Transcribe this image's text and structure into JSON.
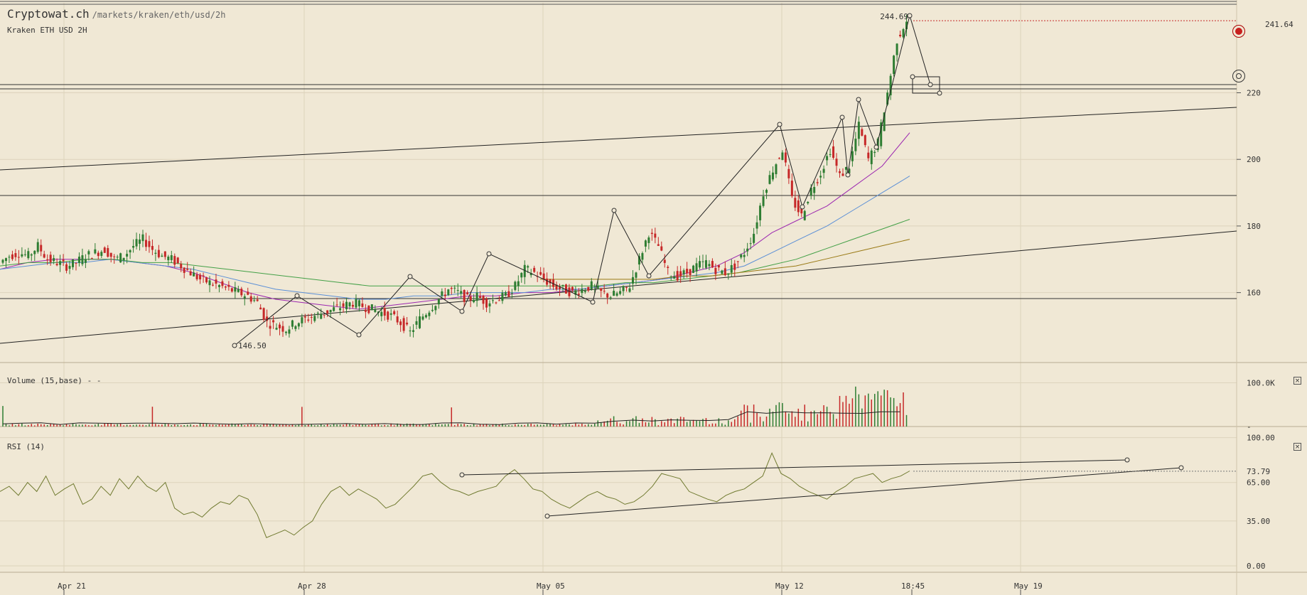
{
  "header": {
    "site": "Cryptowat.ch",
    "path": "/markets/kraken/eth/usd/2h",
    "market": "Kraken ETH USD 2H"
  },
  "panels": {
    "volume_label": "Volume (15,base) - -",
    "rsi_label": "RSI (14)",
    "close_glyph": "×"
  },
  "icons": [
    "alert-icon",
    "target-icon",
    "close-icon"
  ],
  "colors": {
    "background": "#f0e8d5",
    "up_candle": "#2e7d32",
    "down_candle": "#c62828",
    "ma_purple": "#9c27b0",
    "ma_blue": "#5b8fd6",
    "ma_green": "#43a047",
    "ma_olive": "#9a7a16",
    "rsi_line": "#707a30"
  },
  "chart_data": [
    {
      "type": "candlestick",
      "title": "Kraken ETH USD 2H",
      "x_labels": [
        "Apr 21",
        "Apr 28",
        "May 05",
        "May 12",
        "May 19"
      ],
      "x_cursor_label": "18:45",
      "y_ticks": [
        160,
        180,
        200,
        220
      ],
      "y_range": [
        139,
        247
      ],
      "last_price": "241.64",
      "annotations": [
        "244.69",
        "146.50"
      ],
      "close_path": [
        169,
        171,
        172,
        171,
        174,
        170,
        169,
        168,
        169,
        171,
        172,
        173,
        170,
        171,
        174,
        176,
        173,
        171,
        170,
        168,
        166,
        164,
        163,
        162,
        161,
        160,
        159,
        157,
        151,
        150,
        149,
        151,
        152,
        153,
        154,
        155,
        156,
        157,
        156,
        155,
        154,
        153,
        151,
        148,
        152,
        155,
        158,
        161,
        160,
        158,
        159,
        157,
        158,
        159,
        162,
        167,
        166,
        164,
        162,
        161,
        160,
        161,
        162,
        160,
        159,
        160,
        162,
        170,
        178,
        174,
        166,
        165,
        166,
        168,
        169,
        167,
        166,
        168,
        172,
        178,
        190,
        197,
        203,
        188,
        183,
        191,
        196,
        203,
        195,
        198,
        210,
        200,
        205,
        220,
        236,
        242
      ],
      "moving_averages": [
        {
          "color": "purple",
          "values": [
            167,
            169,
            170,
            170,
            170,
            169,
            168,
            166,
            163,
            160,
            158,
            157,
            156,
            155,
            156,
            157,
            158,
            159,
            159,
            160,
            160,
            161,
            162,
            163,
            164,
            166,
            168,
            172,
            178,
            182,
            186,
            192,
            198,
            208
          ]
        },
        {
          "color": "blue",
          "values": [
            167,
            168,
            169,
            169,
            170,
            169,
            168,
            167,
            165,
            163,
            161,
            160,
            159,
            158,
            158,
            159,
            159,
            160,
            160,
            160,
            161,
            161,
            162,
            163,
            164,
            165,
            166,
            168,
            172,
            176,
            180,
            185,
            190,
            195
          ]
        },
        {
          "color": "green",
          "values": [
            168,
            169,
            169,
            170,
            170,
            169,
            169,
            168,
            167,
            166,
            165,
            164,
            163,
            162,
            162,
            162,
            162,
            162,
            162,
            162,
            162,
            162,
            163,
            163,
            164,
            165,
            166,
            168,
            170,
            173,
            176,
            179,
            182
          ]
        },
        {
          "color": "olive",
          "values": [
            164,
            164,
            164,
            164,
            164,
            165,
            165,
            166,
            167,
            168,
            170,
            172,
            174,
            176
          ]
        }
      ]
    },
    {
      "type": "bar",
      "title": "Volume (15,base) - -",
      "y_ticks": [
        "100.0K",
        "-"
      ],
      "y_range": [
        0,
        130000
      ]
    },
    {
      "type": "line",
      "title": "RSI (14)",
      "y_ticks": [
        "100.00",
        "65.00",
        "35.00",
        "0.00"
      ],
      "y_range": [
        -5,
        102
      ],
      "current_value": "73.79",
      "values": [
        58,
        62,
        55,
        65,
        58,
        70,
        55,
        60,
        64,
        48,
        52,
        62,
        55,
        68,
        60,
        70,
        62,
        58,
        65,
        45,
        40,
        42,
        38,
        45,
        50,
        48,
        55,
        52,
        40,
        22,
        25,
        28,
        24,
        30,
        35,
        48,
        58,
        62,
        55,
        60,
        56,
        52,
        45,
        48,
        55,
        62,
        70,
        72,
        65,
        60,
        58,
        55,
        58,
        60,
        62,
        70,
        75,
        68,
        60,
        58,
        52,
        48,
        45,
        50,
        55,
        58,
        54,
        52,
        48,
        50,
        55,
        62,
        72,
        70,
        68,
        58,
        55,
        52,
        50,
        55,
        58,
        60,
        65,
        70,
        88,
        72,
        68,
        62,
        58,
        55,
        52,
        58,
        62,
        68,
        70,
        72,
        65,
        68,
        70,
        74
      ]
    }
  ]
}
